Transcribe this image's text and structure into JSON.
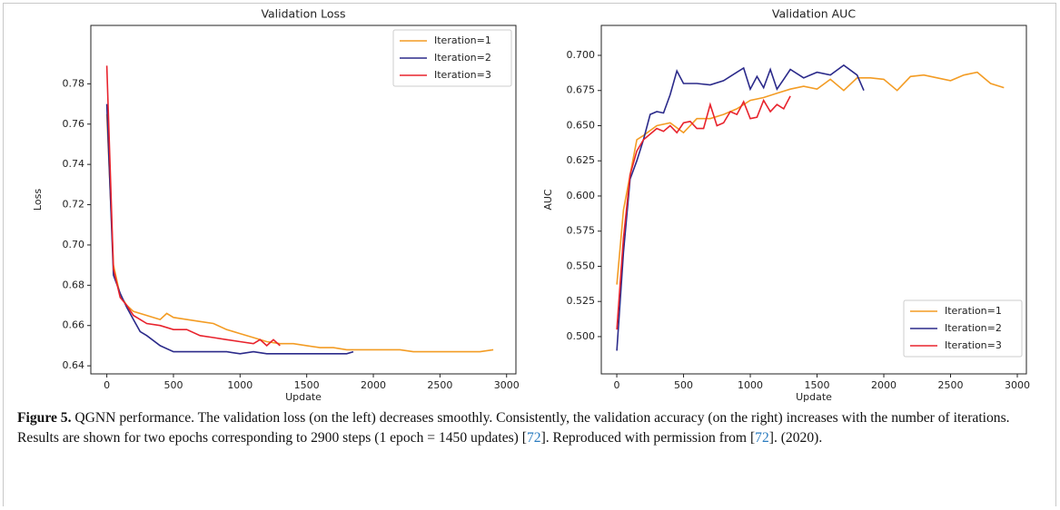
{
  "chart_data": [
    {
      "type": "line",
      "title": "Validation Loss",
      "xlabel": "Update",
      "ylabel": "Loss",
      "xlim": [
        -120,
        3070
      ],
      "xticks": [
        0,
        500,
        1000,
        1500,
        2000,
        2500,
        3000
      ],
      "ylim": [
        0.636,
        0.809
      ],
      "yticks": [
        0.64,
        0.66,
        0.68,
        {
          "value": 0.7,
          "label": "0.70"
        },
        0.72,
        0.74,
        0.76,
        0.78
      ],
      "legend": "upper right",
      "series": [
        {
          "name": "Iteration=1",
          "color": "#f39c24",
          "x": [
            0,
            50,
            100,
            150,
            200,
            300,
            400,
            450,
            500,
            600,
            700,
            800,
            900,
            1000,
            1100,
            1200,
            1300,
            1400,
            1500,
            1600,
            1700,
            1800,
            1900,
            2000,
            2100,
            2200,
            2300,
            2400,
            2500,
            2600,
            2700,
            2800,
            2900
          ],
          "values": [
            0.765,
            0.69,
            0.675,
            0.67,
            0.667,
            0.665,
            0.663,
            0.666,
            0.664,
            0.663,
            0.662,
            0.661,
            0.658,
            0.656,
            0.654,
            0.652,
            0.651,
            0.651,
            0.65,
            0.649,
            0.649,
            0.648,
            0.648,
            0.648,
            0.648,
            0.648,
            0.647,
            0.647,
            0.647,
            0.647,
            0.647,
            0.647,
            0.648
          ]
        },
        {
          "name": "Iteration=2",
          "color": "#2b2a8a",
          "x": [
            0,
            50,
            100,
            150,
            200,
            250,
            300,
            400,
            500,
            600,
            700,
            800,
            900,
            1000,
            1100,
            1200,
            1300,
            1400,
            1500,
            1600,
            1700,
            1800,
            1850
          ],
          "values": [
            0.77,
            0.685,
            0.676,
            0.669,
            0.663,
            0.657,
            0.655,
            0.65,
            0.647,
            0.647,
            0.647,
            0.647,
            0.647,
            0.646,
            0.647,
            0.646,
            0.646,
            0.646,
            0.646,
            0.646,
            0.646,
            0.646,
            0.647
          ]
        },
        {
          "name": "Iteration=3",
          "color": "#e8232d",
          "x": [
            0,
            50,
            100,
            150,
            200,
            300,
            400,
            500,
            600,
            700,
            800,
            900,
            1000,
            1100,
            1150,
            1200,
            1250,
            1300
          ],
          "values": [
            0.789,
            0.688,
            0.674,
            0.67,
            0.665,
            0.661,
            0.66,
            0.658,
            0.658,
            0.655,
            0.654,
            0.653,
            0.652,
            0.651,
            0.653,
            0.65,
            0.653,
            0.65
          ]
        }
      ]
    },
    {
      "type": "line",
      "title": "Validation AUC",
      "xlabel": "Update",
      "ylabel": "AUC",
      "xlim": [
        -116,
        3068
      ],
      "xticks": [
        0,
        500,
        1000,
        1500,
        2000,
        2500,
        3000
      ],
      "ylim": [
        0.4735,
        0.7213
      ],
      "yticks": [
        {
          "value": 0.5,
          "label": "0.500"
        },
        0.525,
        {
          "value": 0.55,
          "label": "0.550"
        },
        0.575,
        {
          "value": 0.6,
          "label": "0.600"
        },
        0.625,
        {
          "value": 0.65,
          "label": "0.650"
        },
        0.675,
        {
          "value": 0.7,
          "label": "0.700"
        }
      ],
      "legend": "lower right",
      "series": [
        {
          "name": "Iteration=1",
          "color": "#f39c24",
          "x": [
            0,
            50,
            100,
            150,
            200,
            300,
            400,
            500,
            600,
            700,
            800,
            900,
            1000,
            1100,
            1200,
            1300,
            1400,
            1500,
            1600,
            1700,
            1800,
            1900,
            2000,
            2100,
            2200,
            2300,
            2400,
            2500,
            2600,
            2700,
            2800,
            2900
          ],
          "values": [
            0.537,
            0.59,
            0.615,
            0.64,
            0.643,
            0.65,
            0.652,
            0.645,
            0.655,
            0.655,
            0.658,
            0.662,
            0.668,
            0.67,
            0.673,
            0.676,
            0.678,
            0.676,
            0.683,
            0.675,
            0.684,
            0.684,
            0.683,
            0.675,
            0.685,
            0.686,
            0.684,
            0.682,
            0.686,
            0.688,
            0.68,
            0.677
          ]
        },
        {
          "name": "Iteration=2",
          "color": "#2b2a8a",
          "x": [
            0,
            50,
            100,
            150,
            200,
            250,
            300,
            350,
            400,
            450,
            500,
            600,
            700,
            800,
            900,
            950,
            1000,
            1050,
            1100,
            1150,
            1200,
            1250,
            1300,
            1400,
            1500,
            1600,
            1700,
            1800,
            1850
          ],
          "values": [
            0.49,
            0.56,
            0.612,
            0.625,
            0.64,
            0.658,
            0.66,
            0.659,
            0.672,
            0.689,
            0.68,
            0.68,
            0.679,
            0.682,
            0.688,
            0.691,
            0.676,
            0.685,
            0.677,
            0.69,
            0.676,
            0.683,
            0.69,
            0.684,
            0.688,
            0.686,
            0.693,
            0.686,
            0.675
          ]
        },
        {
          "name": "Iteration=3",
          "color": "#e8232d",
          "x": [
            0,
            50,
            100,
            150,
            200,
            300,
            350,
            400,
            450,
            500,
            550,
            600,
            650,
            700,
            750,
            800,
            850,
            900,
            950,
            1000,
            1050,
            1100,
            1150,
            1200,
            1250,
            1300
          ],
          "values": [
            0.505,
            0.57,
            0.615,
            0.632,
            0.64,
            0.648,
            0.646,
            0.65,
            0.645,
            0.652,
            0.653,
            0.648,
            0.648,
            0.665,
            0.65,
            0.652,
            0.66,
            0.658,
            0.667,
            0.655,
            0.656,
            0.668,
            0.66,
            0.665,
            0.662,
            0.671
          ]
        }
      ]
    }
  ],
  "caption": {
    "label": "Figure 5.",
    "text_1": "QGNN performance. The validation loss (on the left) decreases smoothly. Consistently, the validation accuracy (on the right) increases with the number of iterations. Results are shown for two epochs corresponding to 2900 steps (1 epoch = 1450 updates) [",
    "ref_1": "72",
    "text_2": "]. Reproduced with permission from [",
    "ref_2": "72",
    "text_3": "]. (2020)."
  }
}
